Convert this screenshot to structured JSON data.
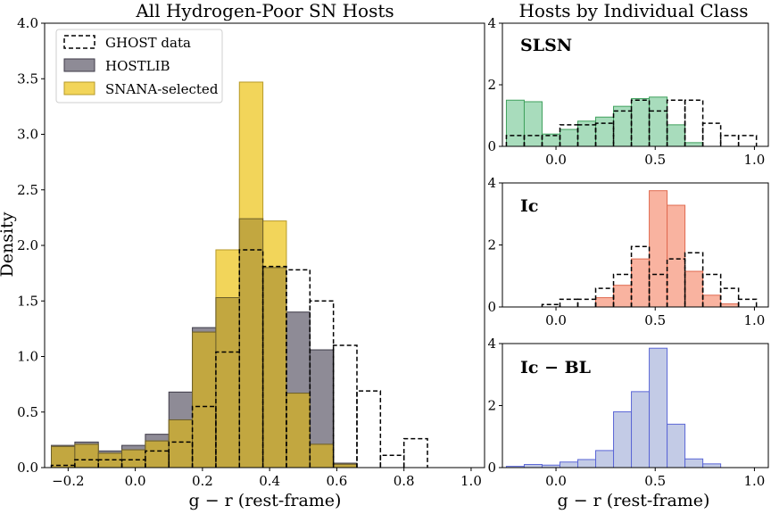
{
  "colors": {
    "hostlib": "#8e8b96",
    "hostlib_edge": "#3d3a47",
    "snana": "#f2d55a",
    "overlap": "#c2a740",
    "ghost_edge": "#000000",
    "slsn_fill": "#a8dcbc",
    "slsn_edge": "#3fa05c",
    "ic_fill": "#f9b3a0",
    "ic_edge": "#e06a50",
    "icbl_fill": "#c3cbe6",
    "icbl_edge": "#5a66d6"
  },
  "chart_data": [
    {
      "type": "bar",
      "title": "All Hydrogen-Poor SN Hosts",
      "xlabel": "g − r (rest-frame)",
      "ylabel": "Density",
      "xlim": [
        -0.27,
        1.04
      ],
      "ylim": [
        0,
        4.0
      ],
      "xticks": [
        -0.2,
        0.0,
        0.2,
        0.4,
        0.6,
        0.8,
        1.0
      ],
      "xtick_labels": [
        "−0.2",
        "0.0",
        "0.2",
        "0.4",
        "0.6",
        "0.8",
        "1.0"
      ],
      "yticks": [
        0,
        0.5,
        1.0,
        1.5,
        2.0,
        2.5,
        3.0,
        3.5,
        4.0
      ],
      "ytick_labels": [
        "0.0",
        "0.5",
        "1.0",
        "1.5",
        "2.0",
        "2.5",
        "3.0",
        "3.5",
        "4.0"
      ],
      "bin_edges": [
        -0.25,
        -0.18,
        -0.11,
        -0.04,
        0.03,
        0.1,
        0.17,
        0.24,
        0.31,
        0.38,
        0.45,
        0.52,
        0.59,
        0.66,
        0.73,
        0.8,
        0.87
      ],
      "series": [
        {
          "name": "HOSTLIB",
          "kind": "filled",
          "values": [
            0.2,
            0.23,
            0.15,
            0.2,
            0.3,
            0.68,
            1.26,
            1.53,
            2.24,
            1.8,
            1.4,
            1.06,
            0.04,
            0.0,
            0.0,
            0.0
          ]
        },
        {
          "name": "SNANA-selected",
          "kind": "filled",
          "values": [
            0.19,
            0.21,
            0.13,
            0.16,
            0.24,
            0.43,
            1.22,
            1.96,
            3.47,
            2.22,
            0.67,
            0.21,
            0.03,
            0.0,
            0.0,
            0.0
          ]
        }
      ],
      "ghost": {
        "name": "GHOST data",
        "bin_edges": [
          -0.25,
          -0.18,
          -0.11,
          -0.04,
          0.03,
          0.1,
          0.17,
          0.24,
          0.31,
          0.38,
          0.45,
          0.52,
          0.59,
          0.66,
          0.73,
          0.8,
          0.87,
          0.94,
          1.01
        ],
        "values": [
          0.02,
          0.07,
          0.07,
          0.07,
          0.15,
          0.23,
          0.55,
          1.04,
          1.96,
          1.81,
          1.78,
          1.5,
          1.1,
          0.69,
          0.11,
          0.26,
          0.0,
          0.0
        ]
      },
      "legend": [
        "GHOST data",
        "HOSTLIB",
        "SNANA-selected"
      ],
      "legend_loc": "upper-left"
    },
    {
      "type": "bar",
      "title": "Hosts by Individual Class",
      "label": "SLSN",
      "xlim": [
        -0.27,
        1.07
      ],
      "ylim": [
        0,
        4
      ],
      "yticks": [
        0,
        2,
        4
      ],
      "ytick_labels": [
        "0",
        "2",
        "4"
      ],
      "xticks": [
        0.0,
        0.5,
        1.0
      ],
      "xtick_labels": [
        "0.0",
        "0.5",
        "1.0"
      ],
      "bin_edges": [
        -0.25,
        -0.16,
        -0.07,
        0.02,
        0.11,
        0.2,
        0.29,
        0.38,
        0.47,
        0.56,
        0.65,
        0.74
      ],
      "values": [
        1.5,
        1.45,
        0.4,
        0.55,
        0.82,
        0.95,
        1.3,
        1.55,
        1.6,
        0.7,
        0.12
      ],
      "ghost_edges": [
        -0.25,
        -0.16,
        -0.07,
        0.02,
        0.11,
        0.2,
        0.29,
        0.38,
        0.47,
        0.56,
        0.65,
        0.74,
        0.83,
        0.92,
        1.01
      ],
      "ghost_values": [
        0.35,
        0.35,
        0.35,
        0.7,
        0.7,
        0.75,
        1.15,
        1.5,
        1.15,
        1.5,
        1.5,
        0.75,
        0.35,
        0.35
      ]
    },
    {
      "type": "bar",
      "label": "Ic",
      "xlim": [
        -0.27,
        1.07
      ],
      "ylim": [
        0,
        4
      ],
      "yticks": [
        0,
        2,
        4
      ],
      "ytick_labels": [
        "0",
        "2",
        "4"
      ],
      "xticks": [
        0.0,
        0.5,
        1.0
      ],
      "xtick_labels": [
        "0.0",
        "0.5",
        "1.0"
      ],
      "bin_edges": [
        0.2,
        0.29,
        0.38,
        0.47,
        0.56,
        0.65,
        0.74,
        0.83,
        0.92
      ],
      "values": [
        0.3,
        0.7,
        1.55,
        3.75,
        3.28,
        1.15,
        0.38,
        0.1
      ],
      "ghost_edges": [
        -0.16,
        -0.07,
        0.02,
        0.11,
        0.2,
        0.29,
        0.38,
        0.47,
        0.56,
        0.65,
        0.74,
        0.83,
        0.92,
        1.01
      ],
      "ghost_values": [
        0.0,
        0.08,
        0.25,
        0.25,
        0.6,
        1.05,
        1.95,
        1.05,
        1.55,
        1.75,
        1.05,
        0.6,
        0.25
      ]
    },
    {
      "type": "bar",
      "label": "Ic − BL",
      "xlabel": "g − r (rest-frame)",
      "xlim": [
        -0.27,
        1.07
      ],
      "ylim": [
        0,
        4
      ],
      "yticks": [
        0,
        2,
        4
      ],
      "ytick_labels": [
        "0",
        "2",
        "4"
      ],
      "xticks": [
        0.0,
        0.5,
        1.0
      ],
      "xtick_labels": [
        "0.0",
        "0.5",
        "1.0"
      ],
      "bin_edges": [
        -0.25,
        -0.16,
        -0.07,
        0.02,
        0.11,
        0.2,
        0.29,
        0.38,
        0.47,
        0.56,
        0.65,
        0.74,
        0.83
      ],
      "values": [
        0.04,
        0.1,
        0.08,
        0.18,
        0.26,
        0.55,
        1.8,
        2.45,
        3.85,
        1.4,
        0.28,
        0.12
      ]
    }
  ]
}
